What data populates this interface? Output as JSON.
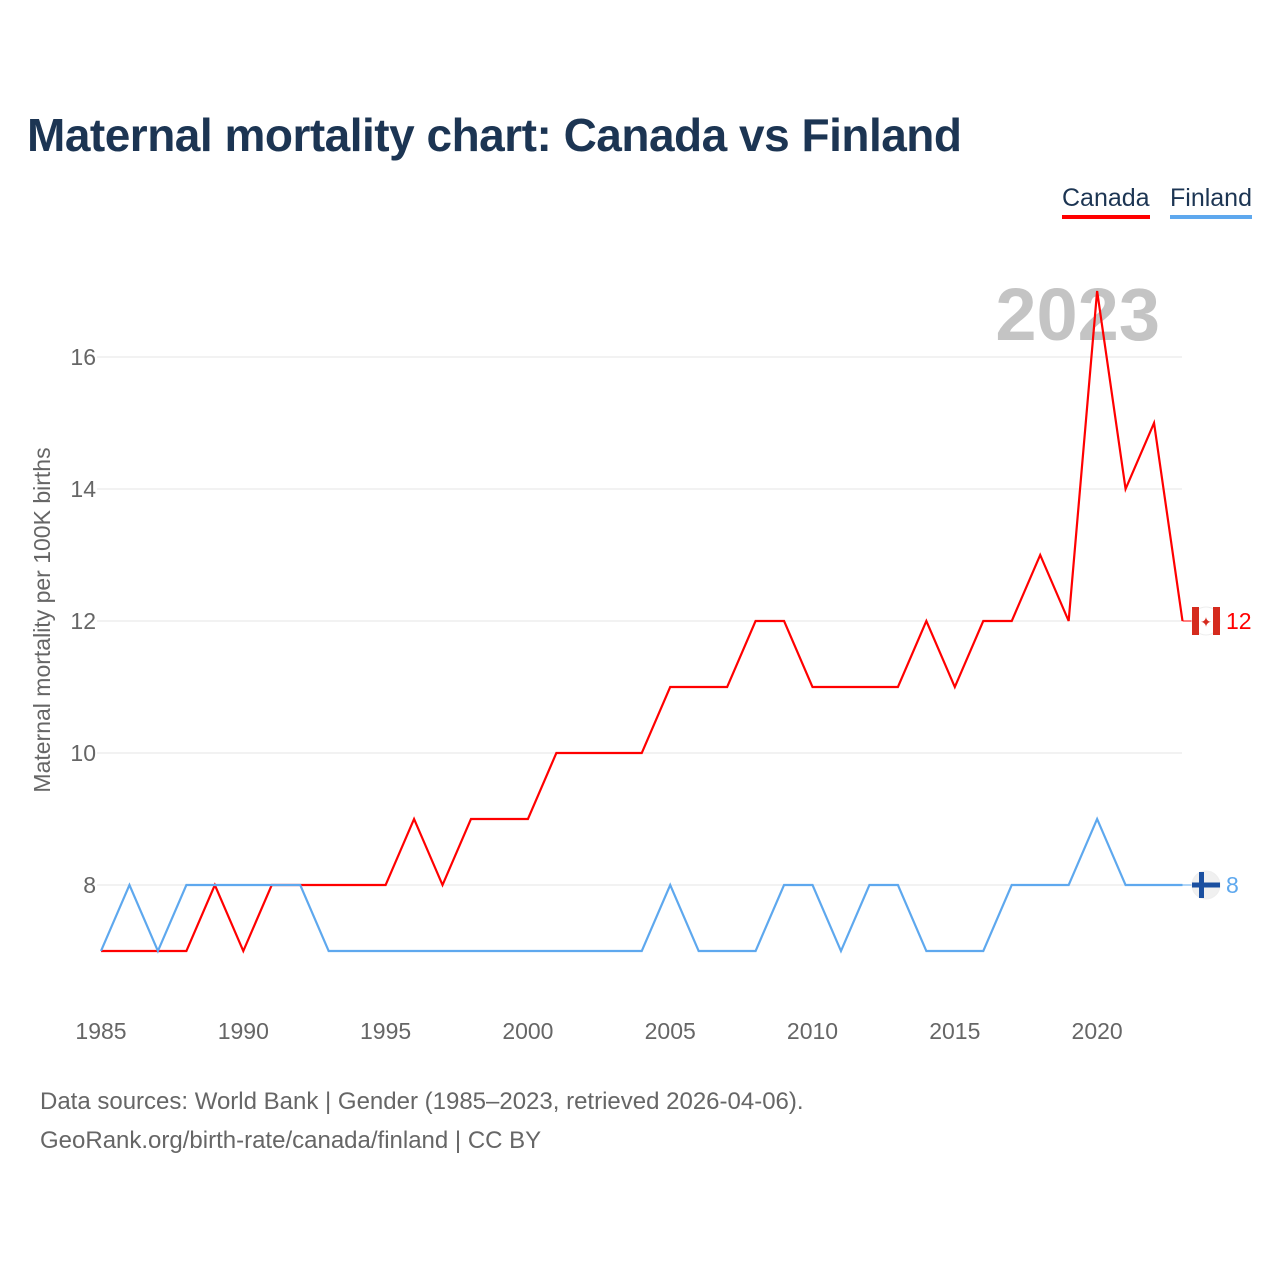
{
  "title": "Maternal mortality chart: Canada vs Finland",
  "legend": [
    {
      "name": "Canada",
      "color": "#ff0000"
    },
    {
      "name": "Finland",
      "color": "#5ea8ee"
    }
  ],
  "year_watermark": "2023",
  "source_line1": "Data sources: World Bank | Gender (1985–2023, retrieved 2026-04-06).",
  "source_line2": "GeoRank.org/birth-rate/canada/finland | CC BY",
  "chart_data": {
    "type": "line",
    "title": "Maternal mortality chart: Canada vs Finland",
    "xlabel": "",
    "ylabel": "Maternal mortality per 100K births",
    "x": [
      1985,
      1986,
      1987,
      1988,
      1989,
      1990,
      1991,
      1992,
      1993,
      1994,
      1995,
      1996,
      1997,
      1998,
      1999,
      2000,
      2001,
      2002,
      2003,
      2004,
      2005,
      2006,
      2007,
      2008,
      2009,
      2010,
      2011,
      2012,
      2013,
      2014,
      2015,
      2016,
      2017,
      2018,
      2019,
      2020,
      2021,
      2022,
      2023
    ],
    "series": [
      {
        "name": "Canada",
        "color": "#ff0000",
        "end_label": "12",
        "values": [
          7,
          7,
          7,
          7,
          8,
          7,
          8,
          8,
          8,
          8,
          8,
          9,
          8,
          9,
          9,
          9,
          10,
          10,
          10,
          10,
          11,
          11,
          11,
          12,
          12,
          11,
          11,
          11,
          11,
          12,
          11,
          12,
          12,
          13,
          12,
          17,
          14,
          15,
          12
        ]
      },
      {
        "name": "Finland",
        "color": "#5ea8ee",
        "end_label": "8",
        "values": [
          7,
          8,
          7,
          8,
          8,
          8,
          8,
          8,
          7,
          7,
          7,
          7,
          7,
          7,
          7,
          7,
          7,
          7,
          7,
          7,
          8,
          7,
          7,
          7,
          8,
          8,
          7,
          8,
          8,
          7,
          7,
          7,
          8,
          8,
          8,
          9,
          8,
          8,
          8
        ]
      }
    ],
    "xticks": [
      "1985",
      "1990",
      "1995",
      "2000",
      "2005",
      "2010",
      "2015",
      "2020"
    ],
    "yticks": [
      "8",
      "10",
      "12",
      "14",
      "16"
    ],
    "xlim": [
      1985,
      2023
    ],
    "ylim": [
      6.5,
      17
    ],
    "grid": true,
    "legend_position": "top-right"
  }
}
